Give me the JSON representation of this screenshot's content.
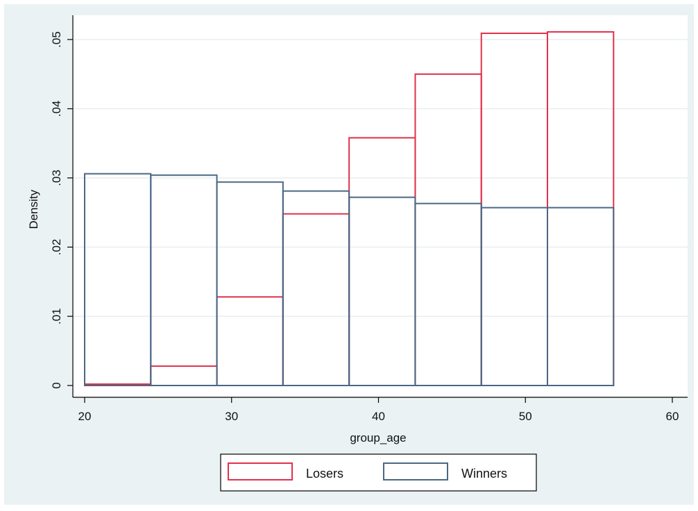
{
  "chart_data": {
    "type": "bar",
    "subtype": "overlaid-histogram",
    "xlabel": "group_age",
    "ylabel": "Density",
    "xlim": [
      20,
      60
    ],
    "ylim": [
      0,
      0.05
    ],
    "x_ticks": [
      {
        "value": 20,
        "label": "20"
      },
      {
        "value": 30,
        "label": "30"
      },
      {
        "value": 40,
        "label": "40"
      },
      {
        "value": 50,
        "label": "50"
      },
      {
        "value": 60,
        "label": "60"
      }
    ],
    "y_ticks": [
      {
        "value": 0,
        "label": "0"
      },
      {
        "value": 0.01,
        "label": ".01"
      },
      {
        "value": 0.02,
        "label": ".02"
      },
      {
        "value": 0.03,
        "label": ".03"
      },
      {
        "value": 0.04,
        "label": ".04"
      },
      {
        "value": 0.05,
        "label": ".05"
      }
    ],
    "grid": true,
    "legend_position": "bottom",
    "bin_edges": [
      20,
      24.5,
      29,
      33.5,
      38,
      42.5,
      47,
      51.5,
      56
    ],
    "series": [
      {
        "name": "Losers",
        "color": "#e0314a",
        "values": [
          0.0002,
          0.0028,
          0.0128,
          0.0248,
          0.0358,
          0.045,
          0.0509,
          0.0511
        ]
      },
      {
        "name": "Winners",
        "color": "#4a6784",
        "values": [
          0.0306,
          0.0304,
          0.0294,
          0.0281,
          0.0272,
          0.0263,
          0.0257,
          0.0257
        ]
      }
    ]
  }
}
